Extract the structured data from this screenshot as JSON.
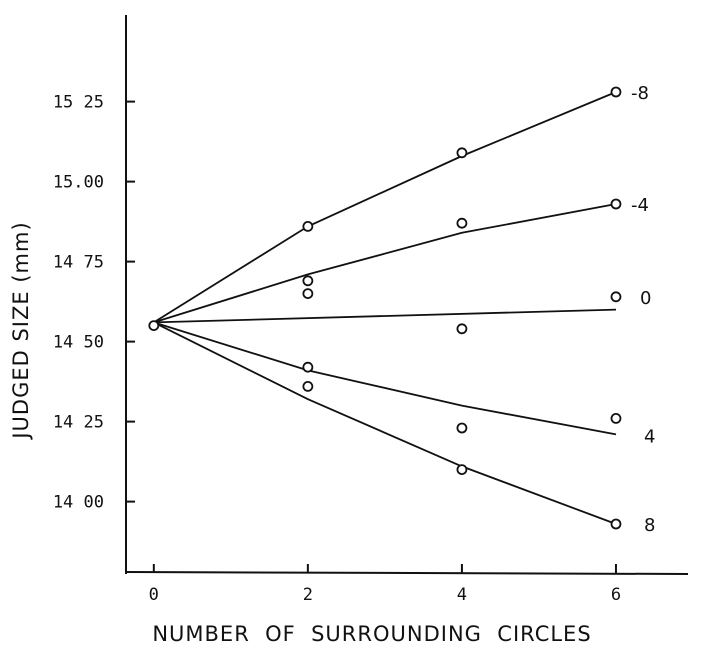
{
  "chart_data": {
    "type": "scatter",
    "xlabel": "NUMBER  OF  SURROUNDING  CIRCLES",
    "ylabel": "JUDGED SIZE (mm)",
    "xlim": [
      -0.4,
      7.0
    ],
    "ylim": [
      13.78,
      15.48
    ],
    "x_ticks": [
      0,
      2,
      4,
      6
    ],
    "x_tick_labels": [
      "0",
      "2",
      "4",
      "6"
    ],
    "y_ticks": [
      14.0,
      14.25,
      14.5,
      14.75,
      15.0,
      15.25
    ],
    "y_tick_labels": [
      "14 00",
      "14 25",
      "14 50",
      "14 75",
      "15.00",
      "15 25"
    ],
    "grid": false,
    "legend": "none",
    "origin_point": {
      "x": 0,
      "y": 14.55
    },
    "series": [
      {
        "name": "-8",
        "points": [
          [
            0,
            14.55
          ],
          [
            2,
            14.86
          ],
          [
            4,
            15.09
          ],
          [
            6,
            15.28
          ]
        ],
        "fit": [
          [
            0,
            14.56
          ],
          [
            2,
            14.86
          ],
          [
            4,
            15.08
          ],
          [
            6,
            15.28
          ]
        ]
      },
      {
        "name": "-4",
        "points": [
          [
            0,
            14.55
          ],
          [
            2,
            14.69
          ],
          [
            2,
            14.65
          ],
          [
            4,
            14.87
          ],
          [
            6,
            14.93
          ]
        ],
        "fit": [
          [
            0,
            14.56
          ],
          [
            2,
            14.71
          ],
          [
            4,
            14.84
          ],
          [
            6,
            14.93
          ]
        ]
      },
      {
        "name": "0",
        "points": [
          [
            0,
            14.55
          ],
          [
            4,
            14.54
          ],
          [
            6,
            14.64
          ]
        ],
        "fit": [
          [
            0,
            14.56
          ],
          [
            6,
            14.6
          ]
        ]
      },
      {
        "name": "4",
        "points": [
          [
            0,
            14.55
          ],
          [
            2,
            14.42
          ],
          [
            4,
            14.23
          ],
          [
            6,
            14.26
          ]
        ],
        "fit": [
          [
            0,
            14.56
          ],
          [
            2,
            14.41
          ],
          [
            4,
            14.3
          ],
          [
            6,
            14.21
          ]
        ]
      },
      {
        "name": "8",
        "points": [
          [
            0,
            14.55
          ],
          [
            2,
            14.36
          ],
          [
            4,
            14.1
          ],
          [
            6,
            13.93
          ]
        ],
        "fit": [
          [
            0,
            14.56
          ],
          [
            2,
            14.32
          ],
          [
            4,
            14.11
          ],
          [
            6,
            13.93
          ]
        ]
      }
    ]
  }
}
